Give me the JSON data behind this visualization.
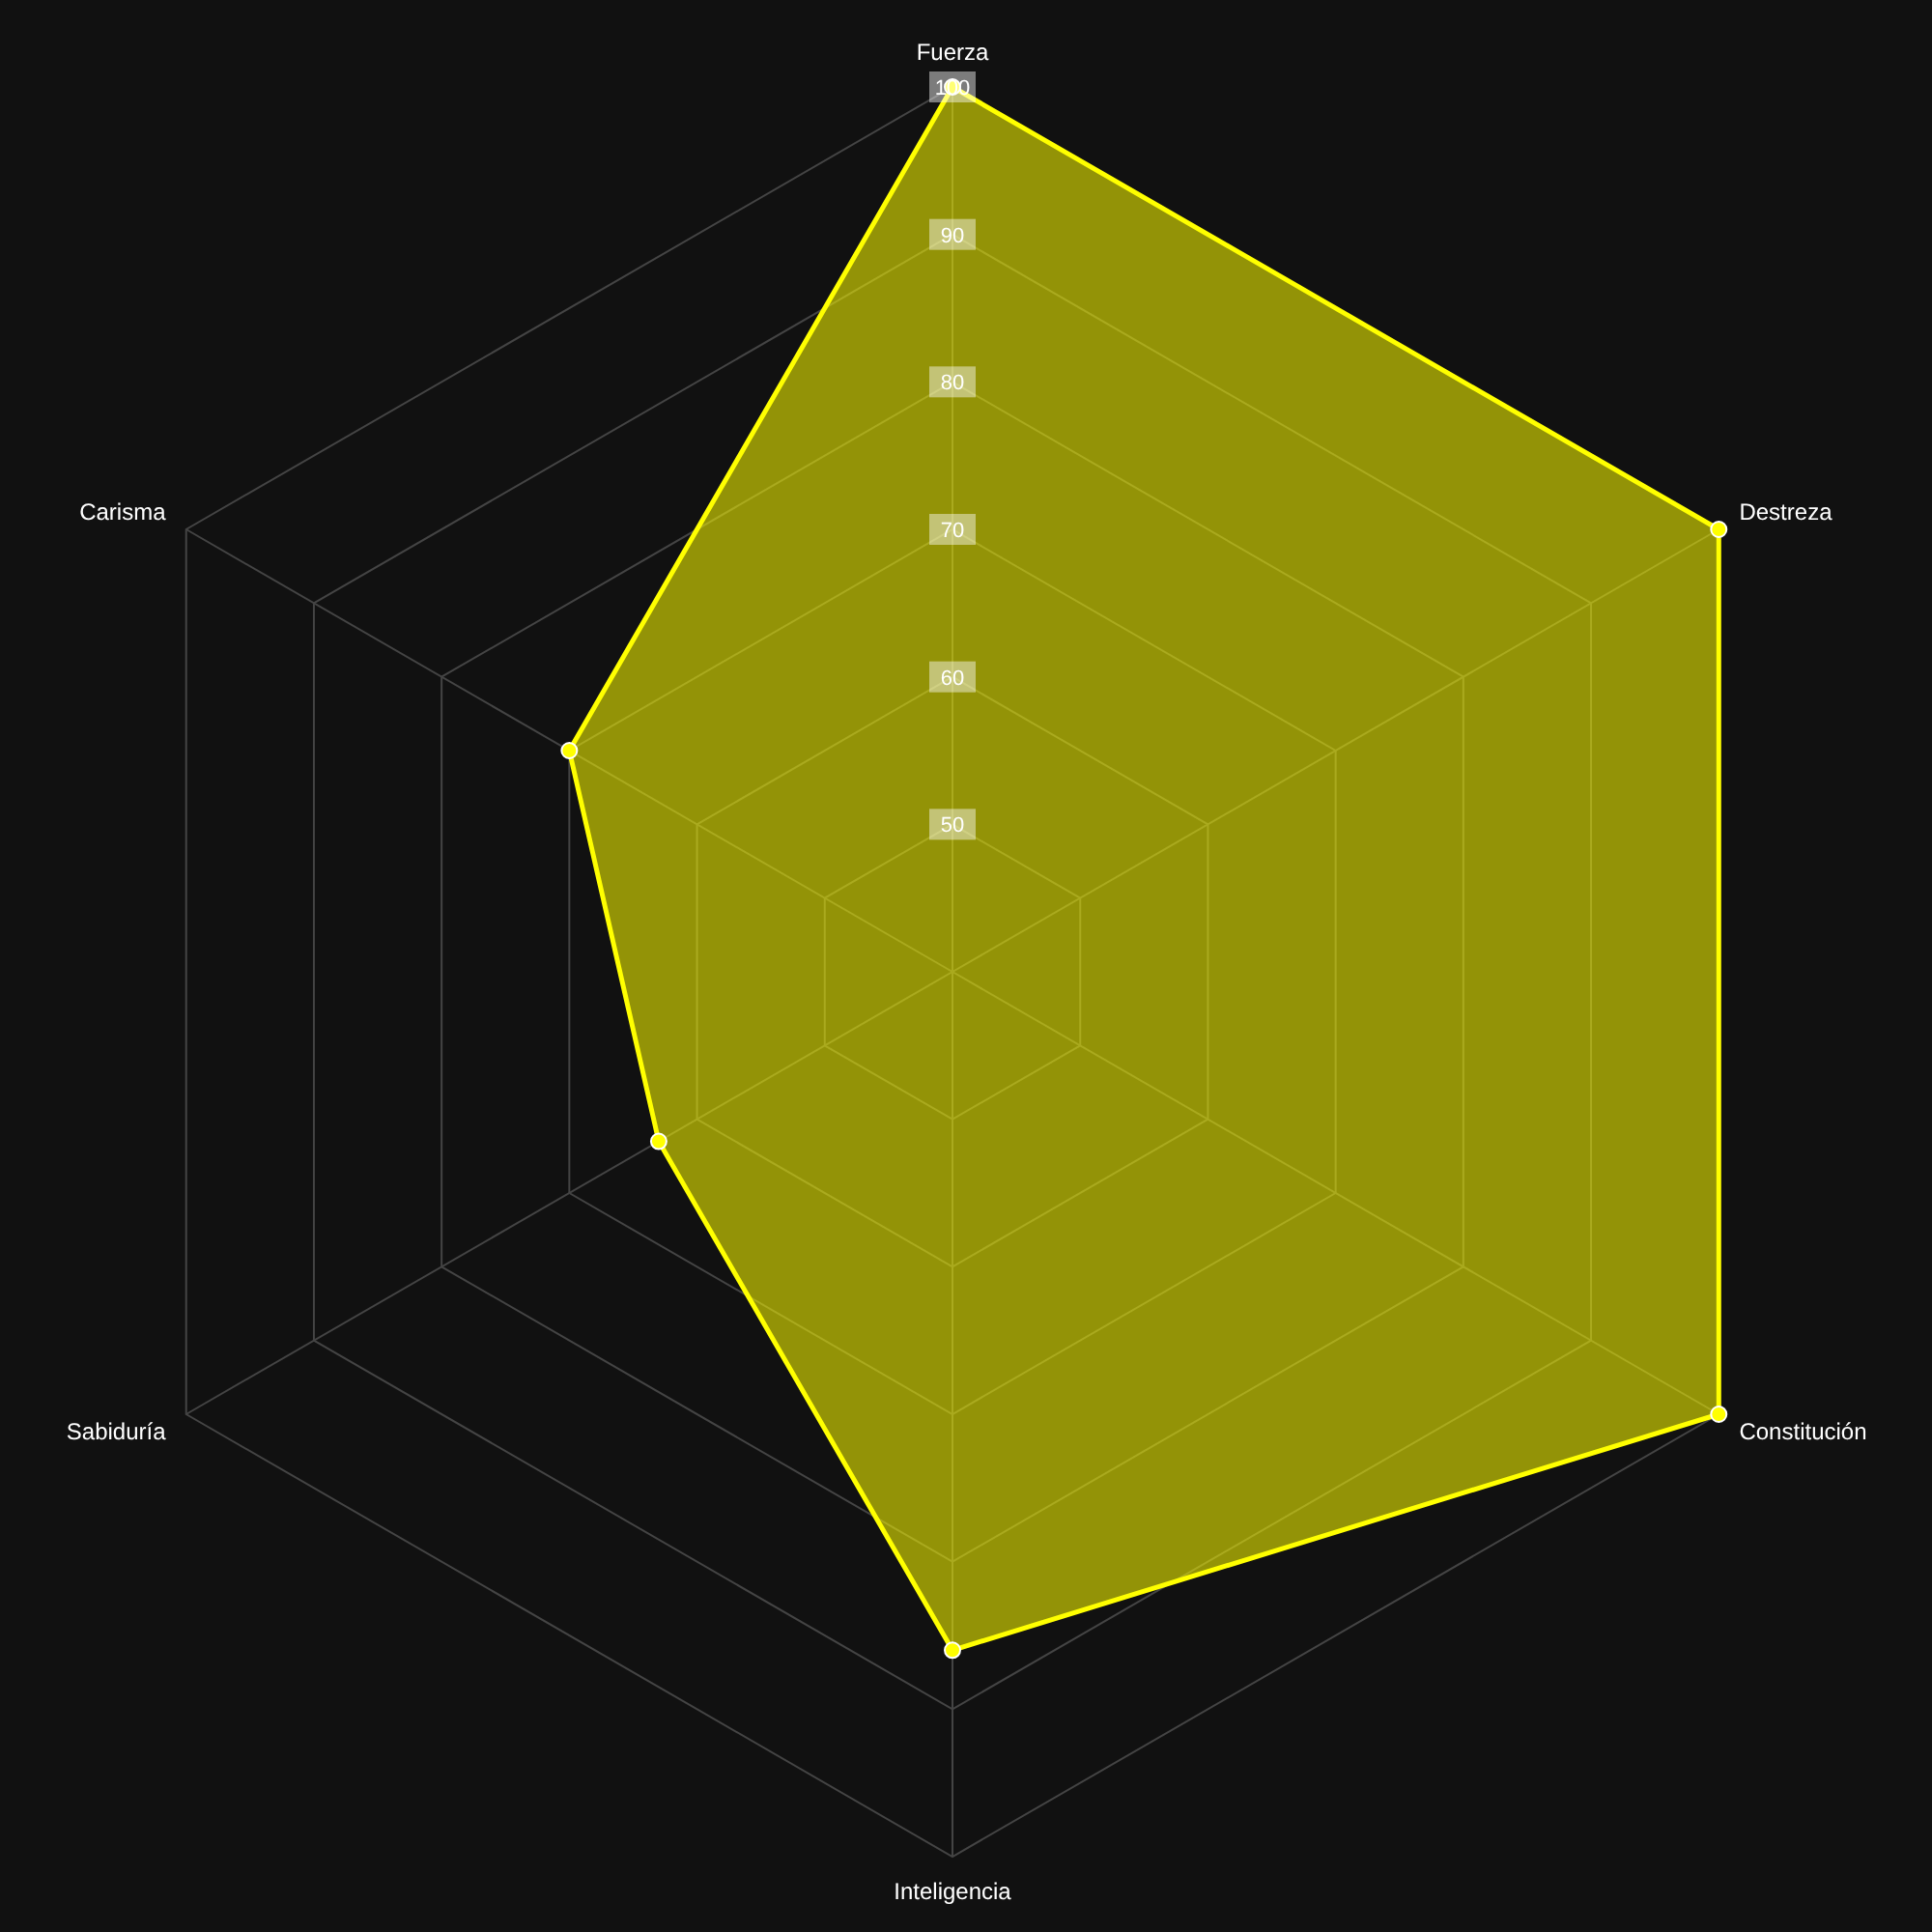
{
  "chart_data": {
    "type": "radar",
    "categories": [
      "Fuerza",
      "Destreza",
      "Constitución",
      "Inteligencia",
      "Sabiduría",
      "Carisma"
    ],
    "series": [
      {
        "color": "#ffff00",
        "values": [
          100,
          100,
          100,
          86,
          63,
          70
        ]
      }
    ],
    "ylim": [
      40,
      100
    ],
    "yticks": [
      50,
      60,
      70,
      80,
      90,
      100
    ],
    "grid": true,
    "marker": "circle"
  }
}
